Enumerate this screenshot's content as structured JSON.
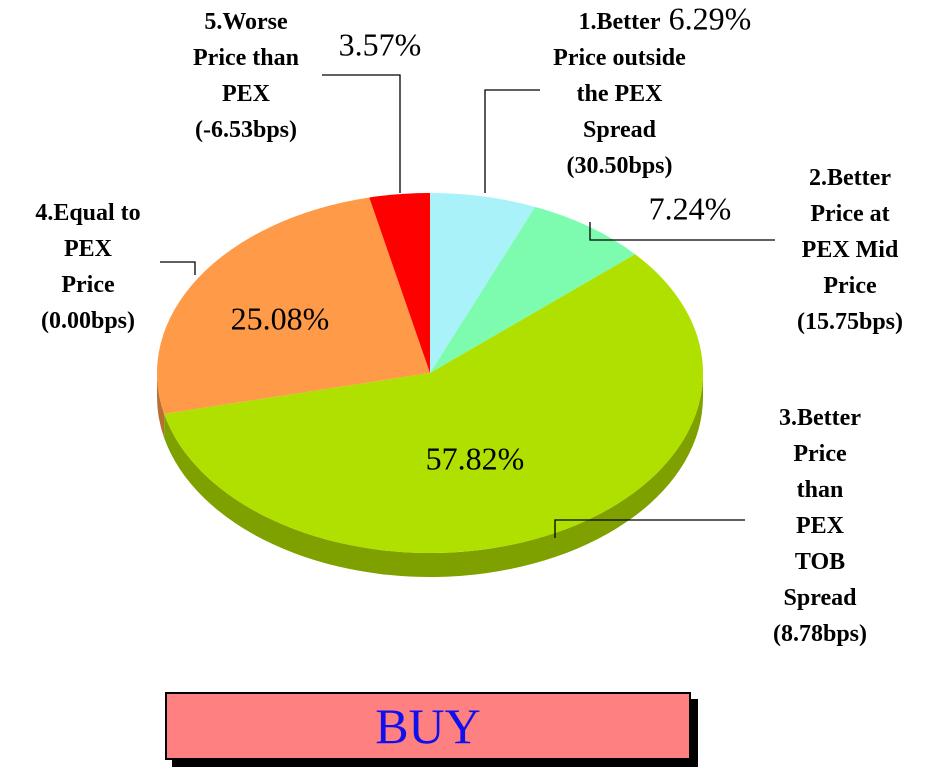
{
  "chart_data": {
    "type": "pie",
    "categories": [
      "1.Better Price outside the PEX Spread (30.50bps)",
      "2.Better Price at PEX Mid Price (15.75bps)",
      "3.Better Price than PEX TOB Spread (8.78bps)",
      "4.Equal to PEX Price (0.00bps)",
      "5.Worse Price than PEX (-6.53bps)"
    ],
    "values": [
      6.29,
      7.24,
      57.82,
      25.08,
      3.57
    ],
    "value_labels": [
      "6.29%",
      "7.24%",
      "57.82%",
      "25.08%",
      "3.57%"
    ],
    "colors": [
      "#aaf2fa",
      "#7dfcb0",
      "#b0e000",
      "#ff9a48",
      "#ff0000"
    ],
    "button": "BUY"
  }
}
